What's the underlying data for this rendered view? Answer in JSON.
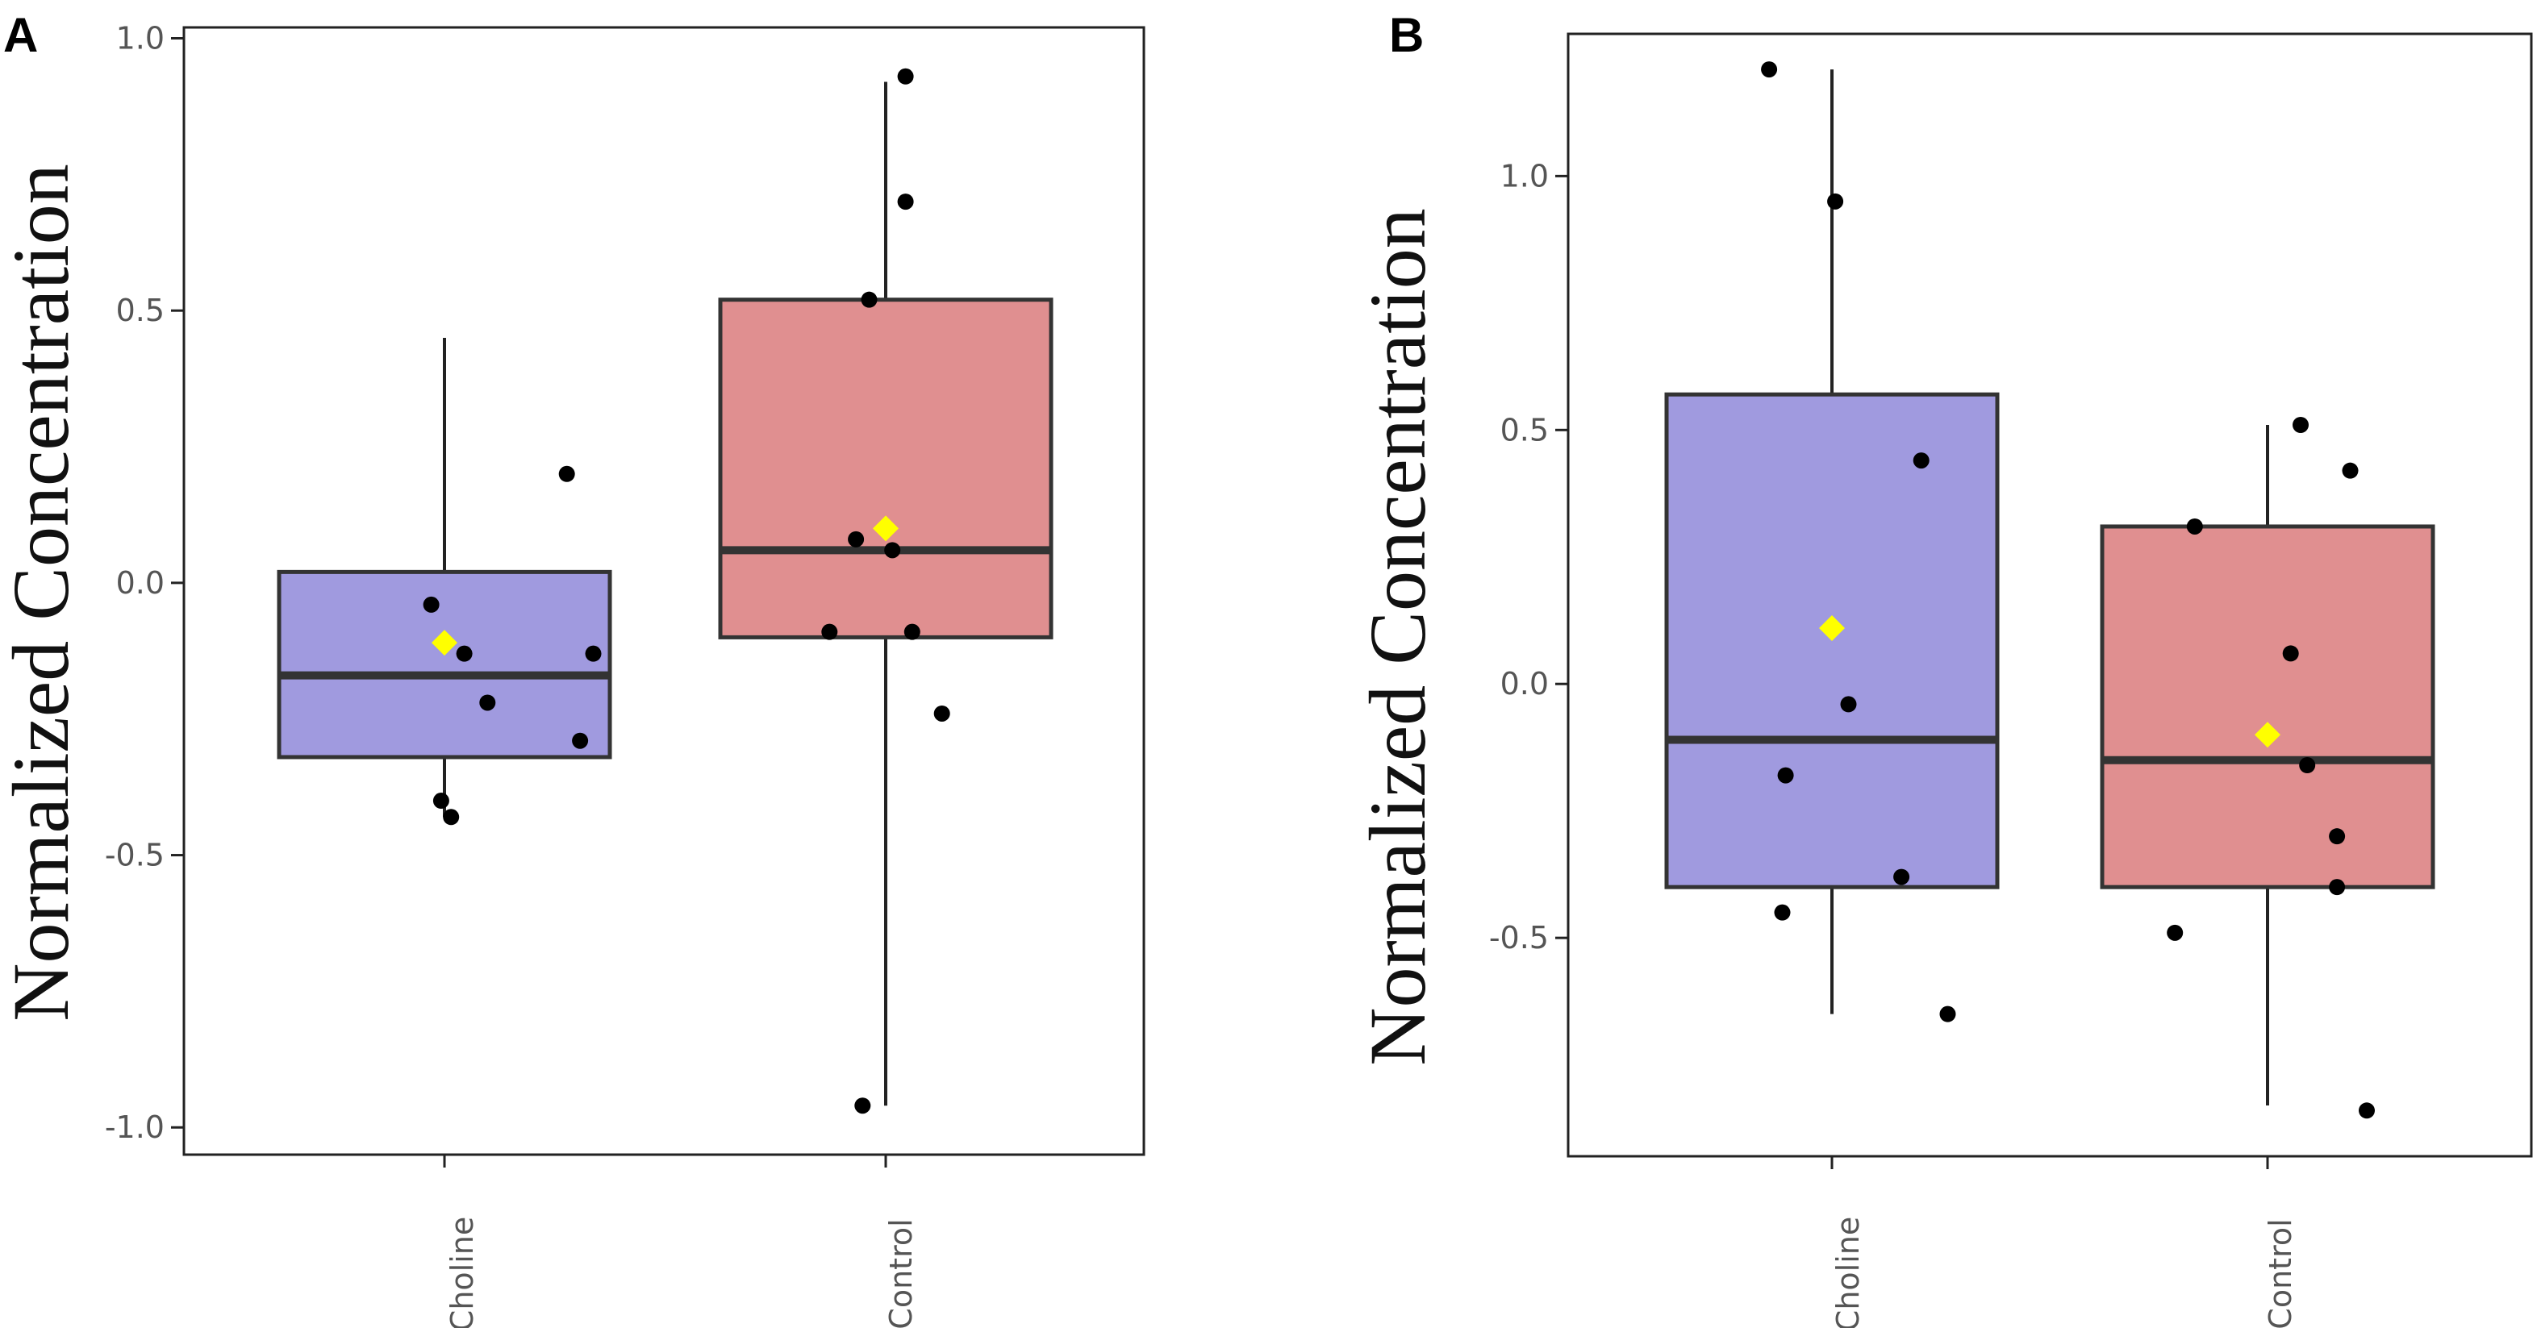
{
  "chart_data": [
    {
      "panel": "A",
      "type": "boxplot",
      "ylabel": "Normalized Concentration",
      "ylim": [
        -1.05,
        1.02
      ],
      "yticks": [
        -1.0,
        -0.5,
        0.0,
        0.5,
        1.0
      ],
      "ytick_labels": [
        "-1.0",
        "-0.5",
        "0.0",
        "0.5",
        "1.0"
      ],
      "categories": [
        "Choline",
        "Control"
      ],
      "boxes": [
        {
          "name": "Choline",
          "color": "#a09adf",
          "whisker_low": -0.43,
          "q1": -0.32,
          "median": -0.17,
          "q3": 0.02,
          "whisker_high": 0.45,
          "mean": -0.11,
          "points": [
            [
              -0.04,
              -0.04
            ],
            [
              0.45,
              -0.13
            ],
            [
              0.37,
              0.2
            ],
            [
              0.41,
              -0.29
            ],
            [
              -0.01,
              -0.4
            ],
            [
              0.02,
              -0.43
            ],
            [
              0.06,
              -0.13
            ],
            [
              0.13,
              -0.22
            ]
          ]
        },
        {
          "name": "Control",
          "color": "#e08f90",
          "whisker_low": -0.96,
          "q1": -0.1,
          "median": 0.06,
          "q3": 0.52,
          "whisker_high": 0.92,
          "mean": 0.1,
          "points": [
            [
              -0.05,
              0.52
            ],
            [
              0.06,
              0.93
            ],
            [
              0.06,
              0.7
            ],
            [
              -0.09,
              0.08
            ],
            [
              0.02,
              0.06
            ],
            [
              -0.17,
              -0.09
            ],
            [
              0.08,
              -0.09
            ],
            [
              0.17,
              -0.24
            ],
            [
              -0.07,
              -0.96
            ]
          ]
        }
      ],
      "mean_color": "#ffff00"
    },
    {
      "panel": "B",
      "type": "boxplot",
      "ylabel": "Normalized Concentration",
      "ylim": [
        -0.93,
        1.28
      ],
      "yticks": [
        -0.5,
        0.0,
        0.5,
        1.0
      ],
      "ytick_labels": [
        "-0.5",
        "0.0",
        "0.5",
        "1.0"
      ],
      "categories": [
        "Choline",
        "Control"
      ],
      "boxes": [
        {
          "name": "Choline",
          "color": "#a09adf",
          "whisker_low": -0.65,
          "q1": -0.4,
          "median": -0.11,
          "q3": 0.57,
          "whisker_high": 1.21,
          "mean": 0.11,
          "points": [
            [
              -0.19,
              1.21
            ],
            [
              0.01,
              0.95
            ],
            [
              0.27,
              0.44
            ],
            [
              0.05,
              -0.04
            ],
            [
              -0.14,
              -0.18
            ],
            [
              -0.15,
              -0.45
            ],
            [
              0.21,
              -0.38
            ],
            [
              0.35,
              -0.65
            ]
          ]
        },
        {
          "name": "Control",
          "color": "#e08f90",
          "whisker_low": -0.83,
          "q1": -0.4,
          "median": -0.15,
          "q3": 0.31,
          "whisker_high": 0.51,
          "mean": -0.1,
          "points": [
            [
              0.1,
              0.51
            ],
            [
              0.25,
              0.42
            ],
            [
              -0.22,
              0.31
            ],
            [
              0.07,
              0.06
            ],
            [
              0.12,
              -0.16
            ],
            [
              0.21,
              -0.3
            ],
            [
              0.21,
              -0.4
            ],
            [
              -0.28,
              -0.49
            ],
            [
              0.3,
              -0.84
            ]
          ]
        }
      ],
      "mean_color": "#ffff00"
    }
  ]
}
